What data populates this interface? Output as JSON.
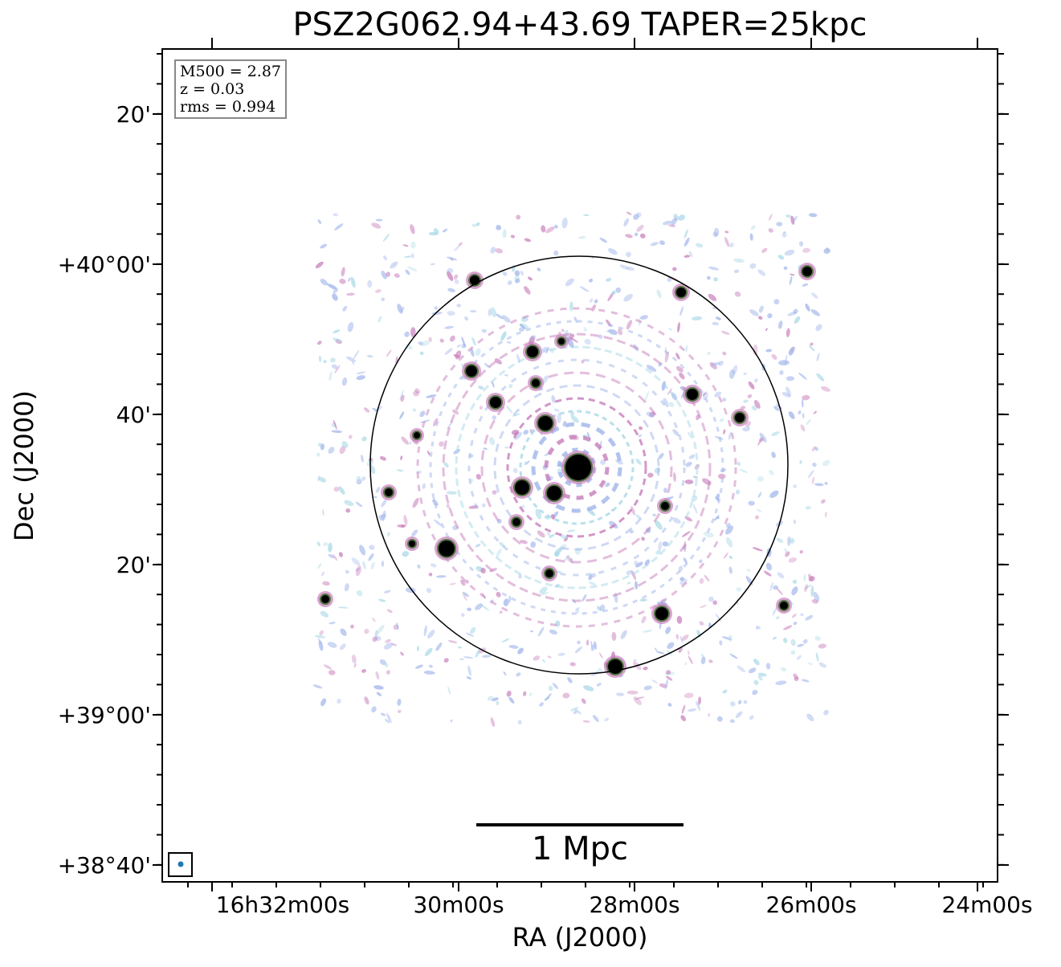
{
  "title": "PSZ2G062.94+43.69 TAPER=25kpc",
  "xaxis": {
    "label": "RA (J2000)",
    "ticks": [
      "16h32m00s",
      "30m00s",
      "28m00s",
      "26m00s",
      "24m00s"
    ]
  },
  "yaxis": {
    "label": "Dec (J2000)",
    "ticks": [
      "20'",
      "+40°00'",
      "40'",
      "20'",
      "+39°00'",
      "+38°40'"
    ]
  },
  "info_box": {
    "m500": "M500 = 2.87",
    "z": "z = 0.03",
    "rms": "rms = 0.994"
  },
  "scalebar": {
    "label": "1 Mpc"
  },
  "colors": {
    "axes": "#000000",
    "info_border": "#888888",
    "beam_marker": "#1f77b4",
    "noise_blue": "#9fb4ea",
    "noise_cyan": "#a8d8e6",
    "emission_pink": "#c77dbb",
    "emission_green": "#3d6b2a",
    "source_core": "#000000"
  }
}
